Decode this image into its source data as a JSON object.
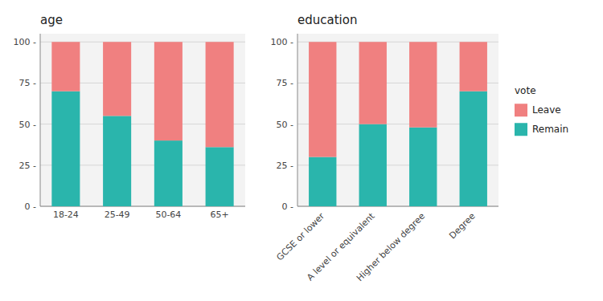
{
  "chart_data": [
    {
      "type": "bar",
      "stacked": true,
      "title": "age",
      "categories": [
        "18-24",
        "25-49",
        "50-64",
        "65+"
      ],
      "series": [
        {
          "name": "Remain",
          "color": "#2ab5ac",
          "values": [
            70,
            55,
            40,
            36
          ]
        },
        {
          "name": "Leave",
          "color": "#f08080",
          "values": [
            30,
            45,
            60,
            64
          ]
        }
      ],
      "ylim": [
        0,
        105
      ],
      "yticks": [
        {
          "value": 0,
          "label": "0 -"
        },
        {
          "value": 25,
          "label": "25 -"
        },
        {
          "value": 50,
          "label": "50 -"
        },
        {
          "value": 75,
          "label": "75 -"
        },
        {
          "value": 100,
          "label": "100 -"
        }
      ],
      "grid": true
    },
    {
      "type": "bar",
      "stacked": true,
      "title": "education",
      "categories": [
        "GCSE or lower",
        "A level or equivalent",
        "Higher below degree",
        "Degree"
      ],
      "series": [
        {
          "name": "Remain",
          "color": "#2ab5ac",
          "values": [
            30,
            50,
            48,
            70
          ]
        },
        {
          "name": "Leave",
          "color": "#f08080",
          "values": [
            70,
            50,
            52,
            30
          ]
        }
      ],
      "ylim": [
        0,
        105
      ],
      "yticks": [
        {
          "value": 0,
          "label": "0 -"
        },
        {
          "value": 25,
          "label": "25 -"
        },
        {
          "value": 50,
          "label": "50 -"
        },
        {
          "value": 75,
          "label": "75 -"
        },
        {
          "value": 100,
          "label": "100 -"
        }
      ],
      "grid": true,
      "legend": "right",
      "legend_title": "vote"
    }
  ]
}
